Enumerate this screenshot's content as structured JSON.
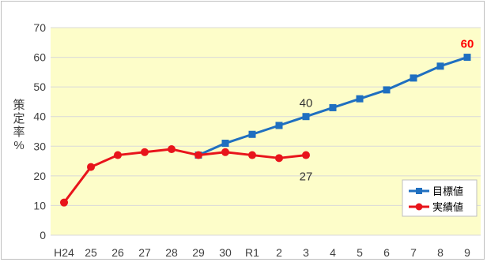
{
  "chart_data": {
    "type": "line",
    "title": "",
    "ylabel": [
      "策",
      "定",
      "率",
      "%"
    ],
    "ylim": [
      0,
      70
    ],
    "yticks": [
      0,
      10,
      20,
      30,
      40,
      50,
      60,
      70
    ],
    "categories": [
      "H24",
      "25",
      "26",
      "27",
      "28",
      "29",
      "30",
      "R1",
      "2",
      "3",
      "4",
      "5",
      "6",
      "7",
      "8",
      "9"
    ],
    "grid": true,
    "legend_position": "bottom-right",
    "series": [
      {
        "name": "目標値",
        "color": "#1f6fc0",
        "marker": "square",
        "values": [
          null,
          null,
          null,
          null,
          null,
          27,
          31,
          34,
          37,
          40,
          43,
          46,
          49,
          53,
          57,
          60
        ]
      },
      {
        "name": "実績値",
        "color": "#e8141b",
        "marker": "circle",
        "values": [
          11,
          23,
          27,
          28,
          29,
          27,
          28,
          27,
          26,
          27,
          null,
          null,
          null,
          null,
          null,
          null
        ]
      }
    ],
    "annotations": [
      {
        "text": "40",
        "category": "3",
        "value": 40,
        "style": "normal",
        "placement": "above"
      },
      {
        "text": "27",
        "category": "3",
        "value": 27,
        "style": "normal",
        "placement": "below"
      },
      {
        "text": "60",
        "category": "9",
        "value": 60,
        "style": "red-bold",
        "placement": "above"
      }
    ]
  }
}
